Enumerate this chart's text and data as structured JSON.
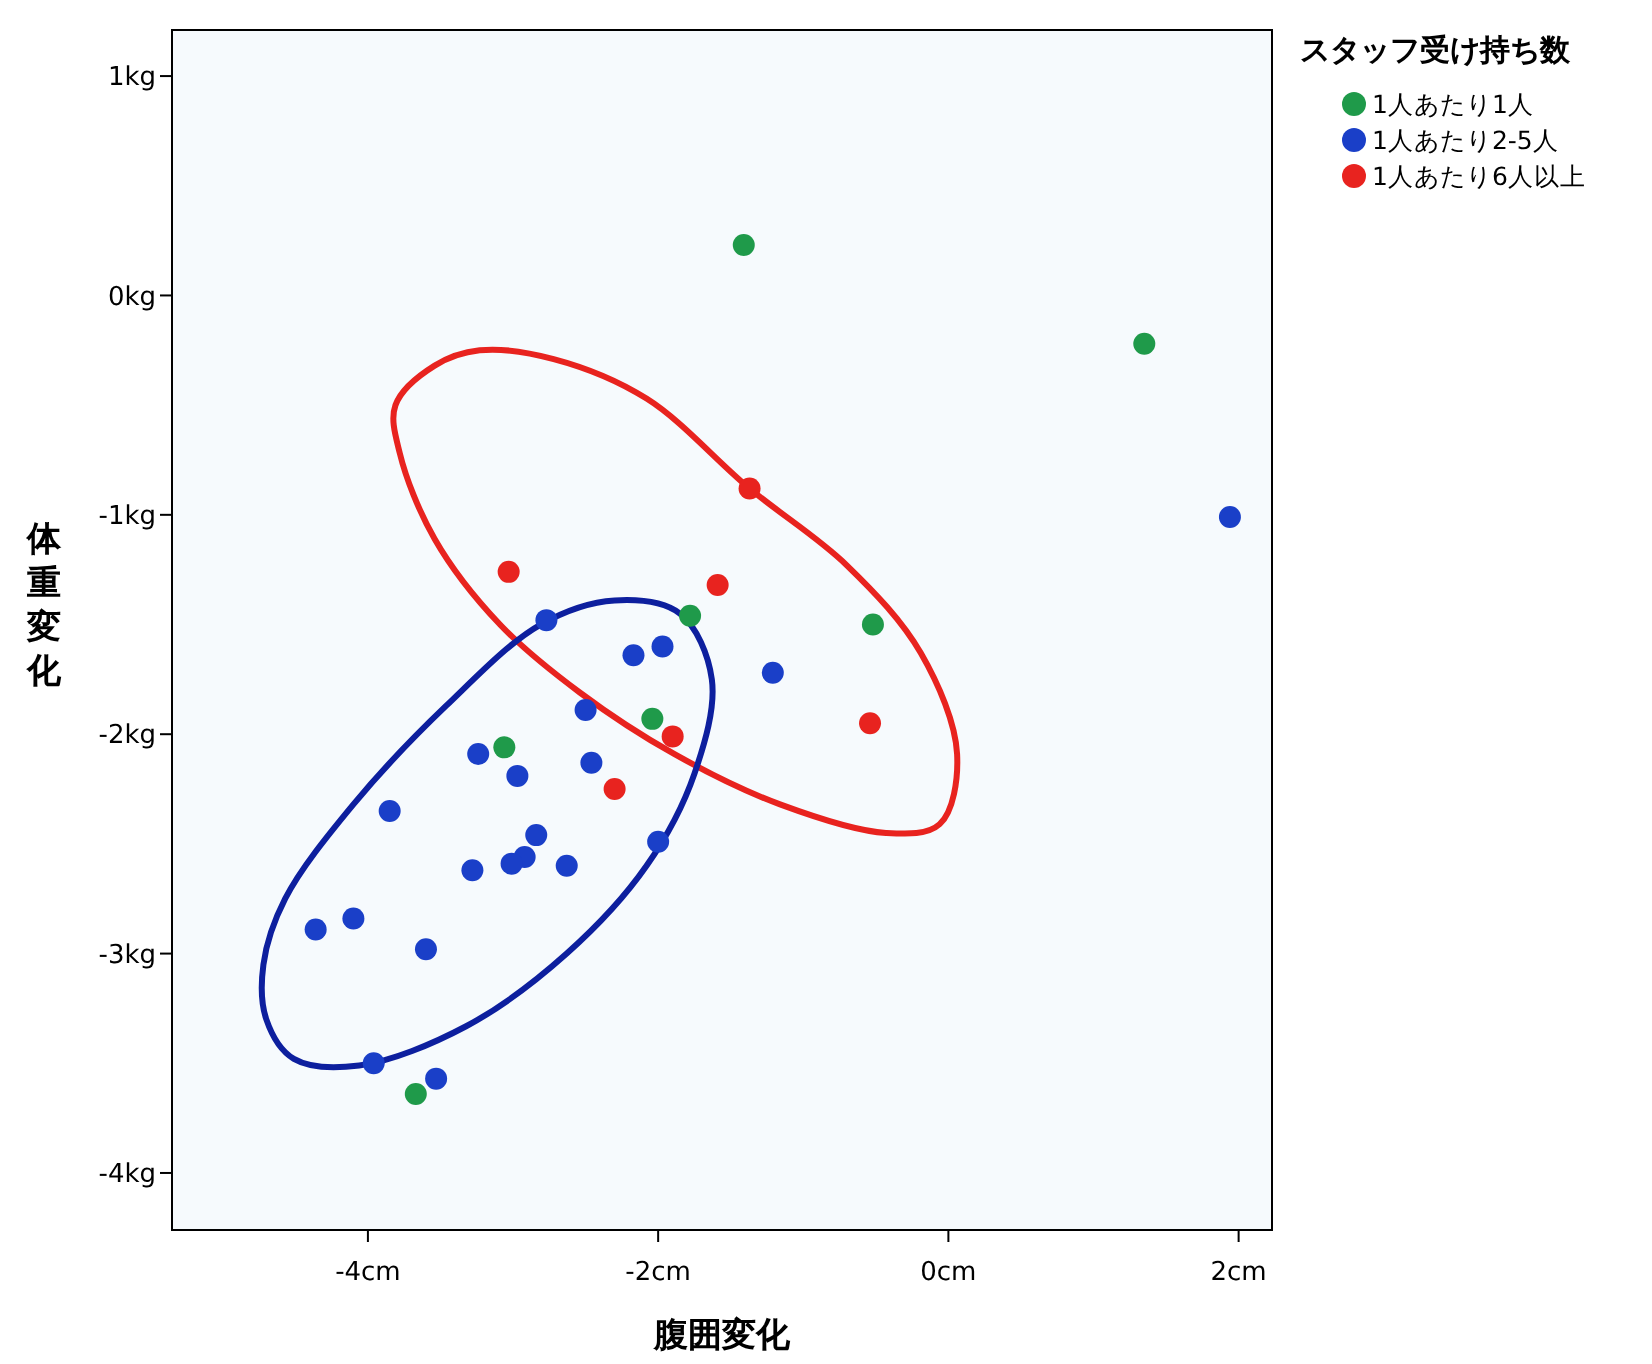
{
  "chart_data": {
    "type": "scatter",
    "xlabel": "腹囲変化",
    "ylabel": "体重変化",
    "legend_title": "スタッフ受け持ち数",
    "legend": "top right",
    "marker": "circle",
    "grid": false,
    "xlim": [
      -5.35,
      2.23
    ],
    "ylim": [
      -4.26,
      1.21
    ],
    "xticks": [
      {
        "value": -4,
        "label": "-4cm"
      },
      {
        "value": -2,
        "label": "-2cm"
      },
      {
        "value": 0,
        "label": "0cm"
      },
      {
        "value": 2,
        "label": "2cm"
      }
    ],
    "yticks": [
      {
        "value": 1,
        "label": "1kg"
      },
      {
        "value": 0,
        "label": "0kg"
      },
      {
        "value": -1,
        "label": "-1kg"
      },
      {
        "value": -2,
        "label": "-2kg"
      },
      {
        "value": -3,
        "label": "-3kg"
      },
      {
        "value": -4,
        "label": "-4kg"
      }
    ],
    "series": [
      {
        "name": "1人あたり1人",
        "color": "#1f9a4a",
        "x": [
          -1.41,
          1.35,
          -1.78,
          -0.52,
          -2.04,
          -3.06,
          -3.67
        ],
        "values": [
          0.23,
          -0.22,
          -1.46,
          -1.5,
          -1.93,
          -2.06,
          -3.64
        ]
      },
      {
        "name": "1人あたり2-5人",
        "color": "#1a3fc8",
        "x": [
          1.94,
          -2.77,
          -2.17,
          -1.97,
          -1.21,
          -2.5,
          -2.46,
          -3.24,
          -2.97,
          -3.85,
          -2.84,
          -2.92,
          -3.01,
          -3.28,
          -2.63,
          -2.0,
          -4.1,
          -4.36,
          -3.6,
          -3.96,
          -3.53
        ],
        "values": [
          -1.01,
          -1.48,
          -1.64,
          -1.6,
          -1.72,
          -1.89,
          -2.13,
          -2.09,
          -2.19,
          -2.35,
          -2.46,
          -2.56,
          -2.59,
          -2.62,
          -2.6,
          -2.49,
          -2.84,
          -2.89,
          -2.98,
          -3.5,
          -3.57
        ]
      },
      {
        "name": "1人あたり6人以上",
        "color": "#e8231f",
        "x": [
          -1.37,
          -3.03,
          -1.59,
          -0.54,
          -1.9,
          -2.3
        ],
        "values": [
          -0.88,
          -1.26,
          -1.32,
          -1.95,
          -2.01,
          -2.25
        ]
      }
    ]
  }
}
